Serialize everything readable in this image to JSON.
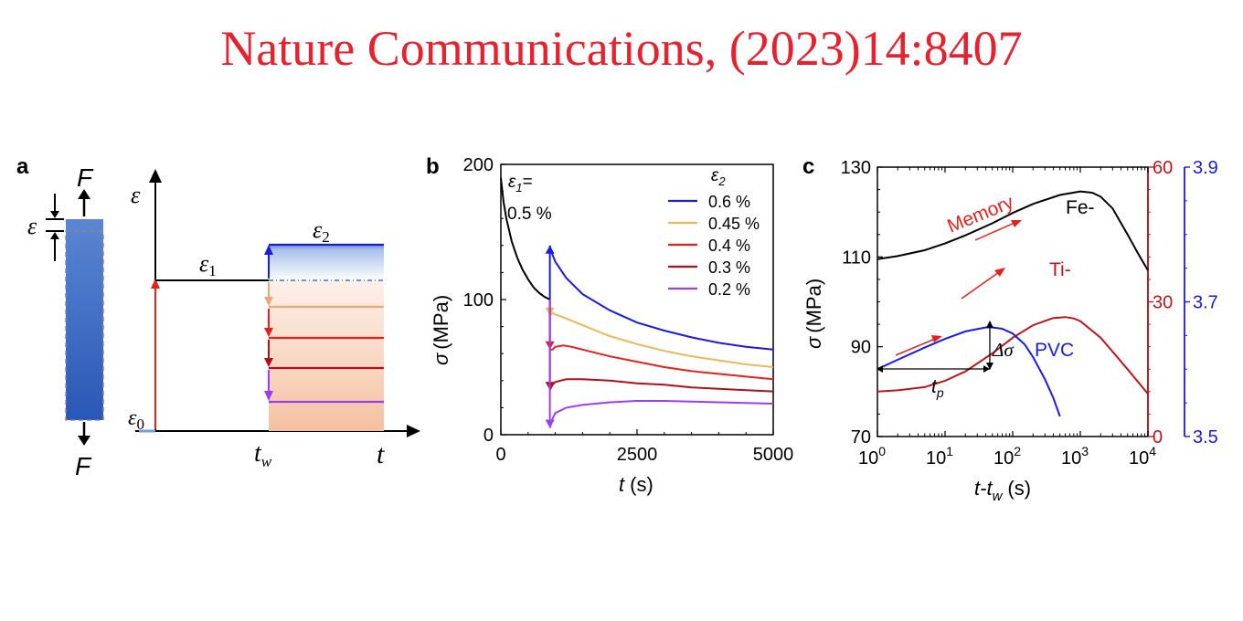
{
  "page_title": "Nature Communications, (2023)14:8407",
  "panels": {
    "a": {
      "label": "a",
      "force": "F",
      "strain_axis": "ε",
      "strain_eps0": "ε",
      "strain_eps0_sub": "0",
      "eps1": "ε",
      "eps1_sub": "1",
      "eps2": "ε",
      "eps2_sub": "2",
      "tw": "t",
      "tw_sub": "w",
      "t_axis": "t"
    },
    "b": {
      "label": "b",
      "eps1_text": "ε",
      "eps1_sub": "1",
      "eps1_eq": "=",
      "eps1_value": "0.5 %",
      "legend_title": "ε",
      "legend_title_sub": "2",
      "ylabel_sym": "σ",
      "ylabel_unit": "(MPa)",
      "xlabel_sym": "t",
      "xlabel_unit": "(s)"
    },
    "c": {
      "label": "c",
      "ylabel_sym": "σ",
      "ylabel_unit": "(MPa)",
      "xlabel": "t-t",
      "xlabel_sub": "w",
      "xlabel_unit": "(s)",
      "memory": "Memory",
      "fe": "Fe-",
      "ti": "Ti-",
      "pvc": "PVC",
      "dsigma": "Δσ",
      "tp": "t",
      "tp_sub": "p"
    }
  },
  "chart_data": [
    {
      "type": "line",
      "panel": "b",
      "xlabel": "t (s)",
      "ylabel": "σ (MPa)",
      "xlim": [
        0,
        5000
      ],
      "ylim": [
        0,
        200
      ],
      "xticks": [
        0,
        2500,
        5000
      ],
      "yticks": [
        0,
        100,
        200
      ],
      "legend_title": "ε2",
      "legend_position": "top-right",
      "loading_curve": {
        "label": "ε1= 0.5 %",
        "color": "#000000",
        "x": [
          0,
          50,
          100,
          200,
          300,
          400,
          500,
          600,
          700,
          800,
          900
        ],
        "y": [
          190,
          172,
          160,
          143,
          131,
          122,
          115,
          109,
          105,
          102,
          100
        ]
      },
      "series": [
        {
          "name": "0.6 %",
          "color": "#1a1ae6",
          "x": [
            900,
            920,
            1000,
            1200,
            1500,
            2000,
            2500,
            3000,
            3500,
            4000,
            4500,
            5000
          ],
          "y": [
            140,
            136,
            128,
            116,
            104,
            92,
            83,
            77,
            72,
            68,
            65,
            63
          ]
        },
        {
          "name": "0.45 %",
          "color": "#e8b85a",
          "x": [
            900,
            950,
            1000,
            1200,
            1500,
            2000,
            2500,
            3000,
            3500,
            4000,
            4500,
            5000
          ],
          "y": [
            88,
            90,
            89,
            86,
            81,
            73,
            67,
            62,
            58,
            55,
            52,
            50
          ]
        },
        {
          "name": "0.4 %",
          "color": "#e8201c",
          "x": [
            900,
            950,
            1000,
            1150,
            1300,
            1500,
            2000,
            2500,
            3000,
            3500,
            4000,
            4500,
            5000
          ],
          "y": [
            63,
            63,
            65,
            66,
            65,
            63,
            58,
            54,
            50,
            47,
            45,
            43,
            41
          ]
        },
        {
          "name": "0.3 %",
          "color": "#b01018",
          "x": [
            900,
            950,
            1000,
            1200,
            1500,
            2000,
            2500,
            3000,
            3500,
            4000,
            4500,
            5000
          ],
          "y": [
            33,
            37,
            39,
            41,
            41,
            40,
            38,
            37,
            35,
            34,
            33,
            32
          ]
        },
        {
          "name": "0.2 %",
          "color": "#9b3ef2",
          "x": [
            900,
            950,
            1000,
            1200,
            1500,
            2000,
            2500,
            3000,
            3500,
            4000,
            4500,
            5000
          ],
          "y": [
            5,
            12,
            16,
            20,
            22,
            24,
            25,
            25,
            24.5,
            24,
            23.5,
            23
          ]
        }
      ],
      "step_arrows": {
        "x": 900,
        "from": 100,
        "to": [
          140,
          88,
          63,
          33,
          5
        ]
      }
    },
    {
      "type": "line",
      "panel": "c",
      "xlabel": "t-tw (s)",
      "ylabel": "σ (MPa)",
      "xscale": "log",
      "xlim": [
        1,
        10000
      ],
      "xticks": [
        "10^0",
        "10^1",
        "10^2",
        "10^3",
        "10^4"
      ],
      "left_axis": {
        "ylim": [
          70,
          130
        ],
        "yticks": [
          70,
          90,
          110,
          130
        ],
        "color": "#000000"
      },
      "right_axis_1": {
        "ylim": [
          0,
          60
        ],
        "yticks": [
          0,
          30,
          60
        ],
        "color": "#c0141c"
      },
      "right_axis_2": {
        "ylim": [
          3.5,
          3.9
        ],
        "yticks": [
          3.5,
          3.7,
          3.9
        ],
        "color": "#1a1ae6"
      },
      "series": [
        {
          "name": "Fe-",
          "axis": "left",
          "color": "#000000",
          "x": [
            1,
            2,
            5,
            10,
            20,
            50,
            100,
            200,
            500,
            1000,
            1500,
            2000,
            3000,
            5000,
            7000,
            10000
          ],
          "y": [
            109.5,
            110.2,
            111.5,
            113,
            114.8,
            117.5,
            119.8,
            121.8,
            123.8,
            124.6,
            124.3,
            123.4,
            120.8,
            115,
            111,
            107
          ]
        },
        {
          "name": "Ti-",
          "axis": "right_1",
          "color": "#c0141c",
          "x": [
            1,
            2,
            5,
            10,
            20,
            50,
            100,
            200,
            400,
            600,
            800,
            1000,
            2000,
            5000,
            10000
          ],
          "y": [
            10,
            10.3,
            11,
            12.4,
            14.5,
            18.5,
            22,
            24.8,
            26.4,
            26.6,
            26.3,
            25.7,
            22,
            15,
            9.5
          ]
        },
        {
          "name": "PVC",
          "axis": "right_2",
          "color": "#1a1ae6",
          "x": [
            1,
            2,
            5,
            10,
            20,
            40,
            50,
            70,
            100,
            150,
            200,
            300,
            400,
            500
          ],
          "y": [
            3.6,
            3.614,
            3.632,
            3.645,
            3.656,
            3.662,
            3.662,
            3.66,
            3.653,
            3.637,
            3.618,
            3.585,
            3.557,
            3.53
          ]
        }
      ],
      "annotations": [
        "Memory",
        "Δσ",
        "tp"
      ]
    }
  ]
}
